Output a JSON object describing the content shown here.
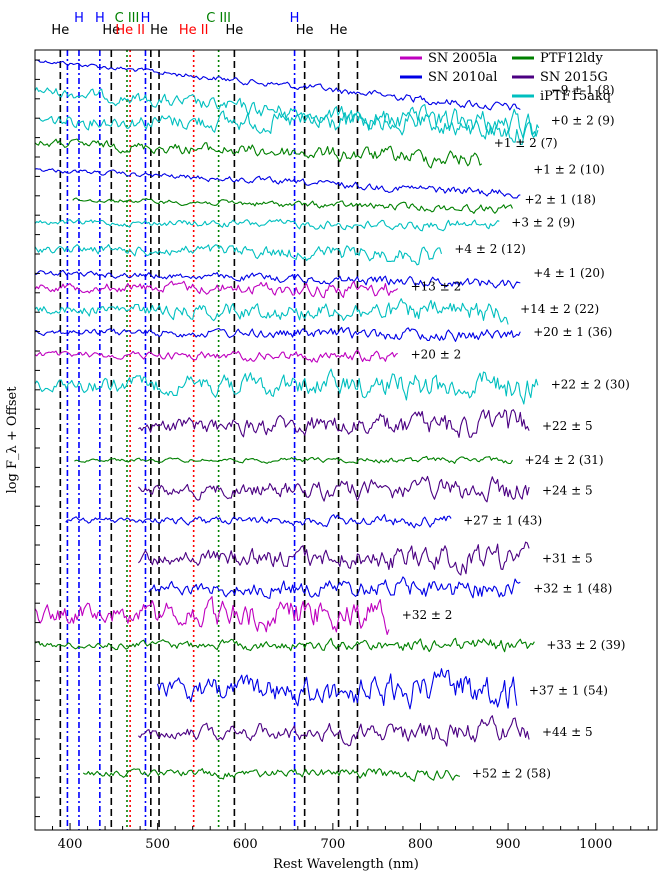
{
  "chart_data": {
    "type": "line",
    "xlabel": "Rest Wavelength (nm)",
    "ylabel": "log F_λ + Offset",
    "xlim": [
      360,
      1070
    ],
    "x_ticks": [
      400,
      500,
      600,
      700,
      800,
      900,
      1000
    ],
    "x_tick_labels": [
      "400",
      "500",
      "600",
      "700",
      "800",
      "900",
      "1000"
    ],
    "colors": {
      "SN 2005la": "#bf00bf",
      "SN 2010al": "#0000e6",
      "PTF12ldy": "#008000",
      "SN 2015G": "#4b0082",
      "iPTF15akq": "#00bfbf"
    },
    "legend": [
      {
        "name": "SN 2005la",
        "color": "#bf00bf"
      },
      {
        "name": "SN 2010al",
        "color": "#0000e6"
      },
      {
        "name": "PTF12ldy",
        "color": "#008000"
      },
      {
        "name": "SN 2015G",
        "color": "#4b0082"
      },
      {
        "name": "iPTF15akq",
        "color": "#00bfbf"
      }
    ],
    "lines": [
      {
        "ion": "He",
        "wl": 388.9,
        "color": "#000000",
        "style": "dashed",
        "show_label": true
      },
      {
        "ion": "He",
        "wl": 447.1,
        "color": "#000000",
        "style": "dashed",
        "show_label": true
      },
      {
        "ion": "He",
        "wl": 492.2,
        "color": "#000000",
        "style": "dashed",
        "show_label": false
      },
      {
        "ion": "He",
        "wl": 501.6,
        "color": "#000000",
        "style": "dashed",
        "show_label": true
      },
      {
        "ion": "He",
        "wl": 587.6,
        "color": "#000000",
        "style": "dashed",
        "show_label": true
      },
      {
        "ion": "He",
        "wl": 667.8,
        "color": "#000000",
        "style": "dashed",
        "show_label": true
      },
      {
        "ion": "He",
        "wl": 706.5,
        "color": "#000000",
        "style": "dashed",
        "show_label": true
      },
      {
        "ion": "He",
        "wl": 728.1,
        "color": "#000000",
        "style": "dashed",
        "show_label": false
      },
      {
        "ion": "H",
        "wl": 397.0,
        "color": "#0000ff",
        "style": "dashdot",
        "show_label": false
      },
      {
        "ion": "H",
        "wl": 410.2,
        "color": "#0000ff",
        "style": "dashdot",
        "show_label": true
      },
      {
        "ion": "H",
        "wl": 434.0,
        "color": "#0000ff",
        "style": "dashdot",
        "show_label": true
      },
      {
        "ion": "H",
        "wl": 486.1,
        "color": "#0000ff",
        "style": "dashdot",
        "show_label": true
      },
      {
        "ion": "H",
        "wl": 656.3,
        "color": "#0000ff",
        "style": "dashdot",
        "show_label": true
      },
      {
        "ion": "C III",
        "wl": 465.0,
        "color": "#008000",
        "style": "dotted",
        "show_label": true
      },
      {
        "ion": "C III",
        "wl": 569.6,
        "color": "#008000",
        "style": "dotted",
        "show_label": true
      },
      {
        "ion": "He II",
        "wl": 468.6,
        "color": "#ff0000",
        "style": "dotted",
        "show_label": true
      },
      {
        "ion": "He II",
        "wl": 541.1,
        "color": "#ff0000",
        "style": "dotted",
        "show_label": true
      }
    ],
    "series": [
      {
        "name": "SN 2010al",
        "epoch": "",
        "range": [
          360,
          915
        ],
        "offset": 0.0,
        "noise": 0.004,
        "slope": -0.14
      },
      {
        "name": "iPTF15akq",
        "epoch": "−9 ± 1 (8)",
        "range": [
          360,
          935
        ],
        "offset": 0.04,
        "noise": 0.01,
        "slope": -0.12
      },
      {
        "name": "iPTF15akq",
        "epoch": "+0 ± 2 (9)",
        "range": [
          365,
          935
        ],
        "offset": 0.08,
        "noise": 0.012,
        "slope": -0.01
      },
      {
        "name": "PTF12ldy",
        "epoch": "+1 ± 2 (7)",
        "range": [
          360,
          870
        ],
        "offset": 0.11,
        "noise": 0.008,
        "slope": -0.05
      },
      {
        "name": "SN 2010al",
        "epoch": "+1 ± 2 (10)",
        "range": [
          360,
          915
        ],
        "offset": 0.145,
        "noise": 0.004,
        "slope": -0.07
      },
      {
        "name": "PTF12ldy",
        "epoch": "+2 ± 1 (18)",
        "range": [
          403,
          905
        ],
        "offset": 0.185,
        "noise": 0.004,
        "slope": -0.03
      },
      {
        "name": "iPTF15akq",
        "epoch": "+3 ± 2 (9)",
        "range": [
          360,
          890
        ],
        "offset": 0.215,
        "noise": 0.005,
        "slope": -0.01
      },
      {
        "name": "iPTF15akq",
        "epoch": "+4 ± 2 (12)",
        "range": [
          360,
          825
        ],
        "offset": 0.25,
        "noise": 0.008,
        "slope": -0.02
      },
      {
        "name": "SN 2010al",
        "epoch": "+4 ± 1 (20)",
        "range": [
          360,
          915
        ],
        "offset": 0.282,
        "noise": 0.005,
        "slope": -0.03
      },
      {
        "name": "SN 2005la",
        "epoch": "+13 ± 2",
        "range": [
          360,
          775
        ],
        "offset": 0.3,
        "noise": 0.008,
        "slope": -0.01
      },
      {
        "name": "iPTF15akq",
        "epoch": "+14 ± 2 (22)",
        "range": [
          360,
          900
        ],
        "offset": 0.33,
        "noise": 0.01,
        "slope": -0.01
      },
      {
        "name": "SN 2010al",
        "epoch": "+20 ± 1 (36)",
        "range": [
          360,
          915
        ],
        "offset": 0.36,
        "noise": 0.006,
        "slope": -0.01
      },
      {
        "name": "SN 2005la",
        "epoch": "+20 ± 2",
        "range": [
          360,
          775
        ],
        "offset": 0.39,
        "noise": 0.006,
        "slope": -0.01
      },
      {
        "name": "iPTF15akq",
        "epoch": "+22 ± 2 (30)",
        "range": [
          360,
          935
        ],
        "offset": 0.43,
        "noise": 0.013,
        "slope": 0.0
      },
      {
        "name": "SN 2015G",
        "epoch": "+22 ± 5",
        "range": [
          478,
          925
        ],
        "offset": 0.485,
        "noise": 0.014,
        "slope": 0.0
      },
      {
        "name": "PTF12ldy",
        "epoch": "+24 ± 2 (31)",
        "range": [
          405,
          905
        ],
        "offset": 0.53,
        "noise": 0.003,
        "slope": 0.0
      },
      {
        "name": "SN 2015G",
        "epoch": "+24 ± 5",
        "range": [
          478,
          925
        ],
        "offset": 0.57,
        "noise": 0.012,
        "slope": 0.0
      },
      {
        "name": "SN 2010al",
        "epoch": "+27 ± 1 (43)",
        "range": [
          395,
          835
        ],
        "offset": 0.61,
        "noise": 0.006,
        "slope": 0.0
      },
      {
        "name": "SN 2015G",
        "epoch": "+31 ± 5",
        "range": [
          478,
          925
        ],
        "offset": 0.66,
        "noise": 0.014,
        "slope": 0.0
      },
      {
        "name": "SN 2010al",
        "epoch": "+32 ± 1 (48)",
        "range": [
          490,
          915
        ],
        "offset": 0.7,
        "noise": 0.012,
        "slope": 0.0
      },
      {
        "name": "SN 2005la",
        "epoch": "+32 ± 2",
        "range": [
          360,
          765
        ],
        "offset": 0.735,
        "noise": 0.018,
        "slope": 0.0
      },
      {
        "name": "PTF12ldy",
        "epoch": "+33 ± 2 (39)",
        "range": [
          360,
          930
        ],
        "offset": 0.775,
        "noise": 0.006,
        "slope": 0.0
      },
      {
        "name": "SN 2010al",
        "epoch": "+37 ± 1 (54)",
        "range": [
          500,
          910
        ],
        "offset": 0.835,
        "noise": 0.02,
        "slope": 0.0
      },
      {
        "name": "SN 2015G",
        "epoch": "+44 ± 5",
        "range": [
          478,
          925
        ],
        "offset": 0.89,
        "noise": 0.012,
        "slope": 0.0
      },
      {
        "name": "PTF12ldy",
        "epoch": "+52 ± 2 (58)",
        "range": [
          415,
          845
        ],
        "offset": 0.945,
        "noise": 0.006,
        "slope": 0.0
      }
    ]
  }
}
